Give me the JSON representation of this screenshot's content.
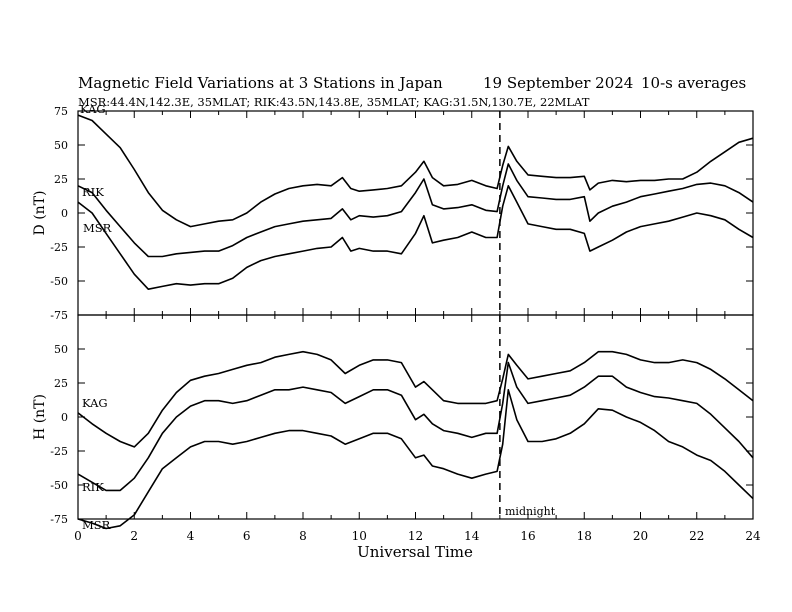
{
  "header": {
    "title": "Magnetic Field Variations at 3 Stations in Japan",
    "date": "19 September 2024",
    "averaging": "10-s averages",
    "stations_line": "MSR:44.4N,142.3E, 35MLAT;  RIK:43.5N,143.8E, 35MLAT;  KAG:31.5N,130.7E, 22MLAT"
  },
  "chart_data": [
    {
      "type": "line",
      "panel": "D",
      "ylabel": "D (nT)",
      "ylim": [
        -75,
        75
      ],
      "yticks": [
        75,
        50,
        25,
        0,
        -25,
        -50,
        -75
      ],
      "xlim": [
        0,
        24
      ],
      "series": [
        {
          "name": "KAG",
          "x": [
            0,
            0.5,
            1,
            1.5,
            2,
            2.5,
            3,
            3.5,
            4,
            4.5,
            5,
            5.5,
            6,
            6.5,
            7,
            7.5,
            8,
            8.5,
            9,
            9.4,
            9.7,
            10,
            10.5,
            11,
            11.5,
            12,
            12.3,
            12.6,
            13,
            13.5,
            14,
            14.5,
            14.9,
            15.1,
            15.3,
            15.6,
            16,
            16.5,
            17,
            17.5,
            18,
            18.2,
            18.5,
            19,
            19.5,
            20,
            20.5,
            21,
            21.5,
            22,
            22.5,
            23,
            23.5,
            24
          ],
          "values": [
            72,
            68,
            58,
            48,
            32,
            15,
            2,
            -5,
            -10,
            -8,
            -6,
            -5,
            0,
            8,
            14,
            18,
            20,
            21,
            20,
            26,
            18,
            16,
            17,
            18,
            20,
            30,
            38,
            26,
            20,
            21,
            24,
            20,
            18,
            35,
            49,
            38,
            28,
            27,
            26,
            26,
            27,
            17,
            22,
            24,
            23,
            24,
            24,
            25,
            25,
            30,
            38,
            45,
            52,
            55
          ]
        },
        {
          "name": "RIK",
          "x": [
            0,
            0.5,
            1,
            1.5,
            2,
            2.5,
            3,
            3.5,
            4,
            4.5,
            5,
            5.5,
            6,
            6.5,
            7,
            7.5,
            8,
            8.5,
            9,
            9.4,
            9.7,
            10,
            10.5,
            11,
            11.5,
            12,
            12.3,
            12.6,
            13,
            13.5,
            14,
            14.5,
            14.9,
            15.1,
            15.3,
            15.6,
            16,
            16.5,
            17,
            17.5,
            18,
            18.2,
            18.5,
            19,
            19.5,
            20,
            20.5,
            21,
            21.5,
            22,
            22.5,
            23,
            23.5,
            24
          ],
          "values": [
            20,
            15,
            2,
            -10,
            -22,
            -32,
            -32,
            -30,
            -29,
            -28,
            -28,
            -24,
            -18,
            -14,
            -10,
            -8,
            -6,
            -5,
            -4,
            3,
            -5,
            -2,
            -3,
            -2,
            1,
            15,
            25,
            6,
            3,
            4,
            6,
            2,
            1,
            20,
            36,
            24,
            12,
            11,
            10,
            10,
            12,
            -6,
            0,
            5,
            8,
            12,
            14,
            16,
            18,
            21,
            22,
            20,
            15,
            8
          ]
        },
        {
          "name": "MSR",
          "x": [
            0,
            0.5,
            1,
            1.5,
            2,
            2.5,
            3,
            3.5,
            4,
            4.5,
            5,
            5.5,
            6,
            6.5,
            7,
            7.5,
            8,
            8.5,
            9,
            9.4,
            9.7,
            10,
            10.5,
            11,
            11.5,
            12,
            12.3,
            12.6,
            13,
            13.5,
            14,
            14.5,
            14.9,
            15.1,
            15.3,
            15.6,
            16,
            16.5,
            17,
            17.5,
            18,
            18.2,
            18.5,
            19,
            19.5,
            20,
            20.5,
            21,
            21.5,
            22,
            22.5,
            23,
            23.5,
            24
          ],
          "values": [
            8,
            0,
            -15,
            -30,
            -45,
            -56,
            -54,
            -52,
            -53,
            -52,
            -52,
            -48,
            -40,
            -35,
            -32,
            -30,
            -28,
            -26,
            -25,
            -18,
            -28,
            -26,
            -28,
            -28,
            -30,
            -15,
            -2,
            -22,
            -20,
            -18,
            -14,
            -18,
            -18,
            5,
            20,
            8,
            -8,
            -10,
            -12,
            -12,
            -15,
            -28,
            -25,
            -20,
            -14,
            -10,
            -8,
            -6,
            -3,
            0,
            -2,
            -5,
            -12,
            -18
          ]
        }
      ]
    },
    {
      "type": "line",
      "panel": "H",
      "ylabel": "H (nT)",
      "xlabel": "Universal Time",
      "ylim": [
        -75,
        75
      ],
      "yticks": [
        50,
        25,
        0,
        -25,
        -50,
        -75
      ],
      "xlim": [
        0,
        24
      ],
      "xticks": [
        0,
        2,
        4,
        6,
        8,
        10,
        12,
        14,
        16,
        18,
        20,
        22,
        24
      ],
      "annotation": {
        "x": 15,
        "label": "midnight"
      },
      "series": [
        {
          "name": "KAG",
          "x": [
            0,
            0.5,
            1,
            1.5,
            2,
            2.5,
            3,
            3.5,
            4,
            4.5,
            5,
            5.5,
            6,
            6.5,
            7,
            7.5,
            8,
            8.5,
            9,
            9.5,
            10,
            10.5,
            11,
            11.5,
            12,
            12.3,
            12.6,
            13,
            13.5,
            14,
            14.5,
            14.9,
            15.1,
            15.3,
            15.6,
            16,
            16.5,
            17,
            17.5,
            18,
            18.5,
            19,
            19.5,
            20,
            20.5,
            21,
            21.5,
            22,
            22.5,
            23,
            23.5,
            24
          ],
          "values": [
            3,
            -5,
            -12,
            -18,
            -22,
            -12,
            5,
            18,
            27,
            30,
            32,
            35,
            38,
            40,
            44,
            46,
            48,
            46,
            42,
            32,
            38,
            42,
            42,
            40,
            22,
            26,
            20,
            12,
            10,
            10,
            10,
            12,
            28,
            46,
            38,
            28,
            30,
            32,
            34,
            40,
            48,
            48,
            46,
            42,
            40,
            40,
            42,
            40,
            35,
            28,
            20,
            12
          ]
        },
        {
          "name": "RIK",
          "x": [
            0,
            0.5,
            1,
            1.5,
            2,
            2.5,
            3,
            3.5,
            4,
            4.5,
            5,
            5.5,
            6,
            6.5,
            7,
            7.5,
            8,
            8.5,
            9,
            9.5,
            10,
            10.5,
            11,
            11.5,
            12,
            12.3,
            12.6,
            13,
            13.5,
            14,
            14.5,
            14.9,
            15.1,
            15.3,
            15.6,
            16,
            16.5,
            17,
            17.5,
            18,
            18.5,
            19,
            19.5,
            20,
            20.5,
            21,
            21.5,
            22,
            22.5,
            23,
            23.5,
            24
          ],
          "values": [
            -42,
            -48,
            -54,
            -54,
            -45,
            -30,
            -12,
            0,
            8,
            12,
            12,
            10,
            12,
            16,
            20,
            20,
            22,
            20,
            18,
            10,
            15,
            20,
            20,
            16,
            -2,
            2,
            -5,
            -10,
            -12,
            -15,
            -12,
            -12,
            10,
            40,
            22,
            10,
            12,
            14,
            16,
            22,
            30,
            30,
            22,
            18,
            15,
            14,
            12,
            10,
            2,
            -8,
            -18,
            -30
          ]
        },
        {
          "name": "MSR",
          "x": [
            0,
            0.5,
            1,
            1.5,
            2,
            2.5,
            3,
            3.5,
            4,
            4.5,
            5,
            5.5,
            6,
            6.5,
            7,
            7.5,
            8,
            8.5,
            9,
            9.5,
            10,
            10.5,
            11,
            11.5,
            12,
            12.3,
            12.6,
            13,
            13.5,
            14,
            14.5,
            14.9,
            15.1,
            15.3,
            15.6,
            16,
            16.5,
            17,
            17.5,
            18,
            18.5,
            19,
            19.5,
            20,
            20.5,
            21,
            21.5,
            22,
            22.5,
            23,
            23.5,
            24
          ],
          "values": [
            -75,
            -78,
            -82,
            -80,
            -72,
            -55,
            -38,
            -30,
            -22,
            -18,
            -18,
            -20,
            -18,
            -15,
            -12,
            -10,
            -10,
            -12,
            -14,
            -20,
            -16,
            -12,
            -12,
            -16,
            -30,
            -28,
            -36,
            -38,
            -42,
            -45,
            -42,
            -40,
            -20,
            20,
            -2,
            -18,
            -18,
            -16,
            -12,
            -5,
            6,
            5,
            0,
            -4,
            -10,
            -18,
            -22,
            -28,
            -32,
            -40,
            -50,
            -60
          ]
        }
      ]
    }
  ]
}
